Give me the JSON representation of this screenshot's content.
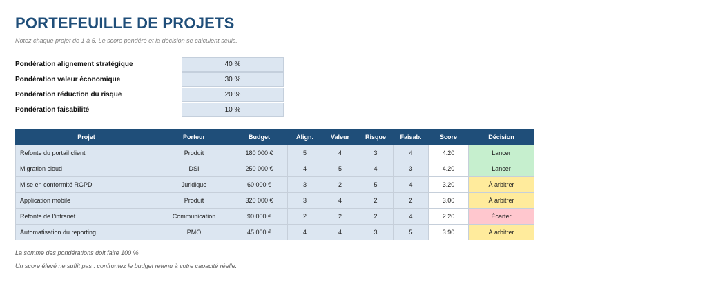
{
  "header": {
    "title": "PORTEFEUILLE DE PROJETS",
    "subtitle": "Notez chaque projet de 1 à 5. Le score pondéré et la décision se calculent seuls."
  },
  "weights": [
    {
      "label": "Pondération alignement stratégique",
      "value": "40 %"
    },
    {
      "label": "Pondération valeur économique",
      "value": "30 %"
    },
    {
      "label": "Pondération réduction du risque",
      "value": "20 %"
    },
    {
      "label": "Pondération faisabilité",
      "value": "10 %"
    }
  ],
  "table": {
    "columns": [
      "Projet",
      "Porteur",
      "Budget",
      "Align.",
      "Valeur",
      "Risque",
      "Faisab.",
      "Score",
      "Décision"
    ],
    "rows": [
      {
        "projet": "Refonte du portail client",
        "porteur": "Produit",
        "budget": "180 000 €",
        "align": "5",
        "valeur": "4",
        "risque": "3",
        "faisab": "4",
        "score": "4.20",
        "decision": "Lancer"
      },
      {
        "projet": "Migration cloud",
        "porteur": "DSI",
        "budget": "250 000 €",
        "align": "4",
        "valeur": "5",
        "risque": "4",
        "faisab": "3",
        "score": "4.20",
        "decision": "Lancer"
      },
      {
        "projet": "Mise en conformité RGPD",
        "porteur": "Juridique",
        "budget": "60 000 €",
        "align": "3",
        "valeur": "2",
        "risque": "5",
        "faisab": "4",
        "score": "3.20",
        "decision": "À arbitrer"
      },
      {
        "projet": "Application mobile",
        "porteur": "Produit",
        "budget": "320 000 €",
        "align": "3",
        "valeur": "4",
        "risque": "2",
        "faisab": "2",
        "score": "3.00",
        "decision": "À arbitrer"
      },
      {
        "projet": "Refonte de l'intranet",
        "porteur": "Communication",
        "budget": "90 000 €",
        "align": "2",
        "valeur": "2",
        "risque": "2",
        "faisab": "4",
        "score": "2.20",
        "decision": "Écarter"
      },
      {
        "projet": "Automatisation du reporting",
        "porteur": "PMO",
        "budget": "45 000 €",
        "align": "4",
        "valeur": "4",
        "risque": "3",
        "faisab": "5",
        "score": "3.90",
        "decision": "À arbitrer"
      }
    ]
  },
  "colors": {
    "header_bg": "#1f4e79",
    "input_bg": "#dce6f1",
    "decision_launch": "#c6efce",
    "decision_arbitrate": "#ffeb9c",
    "decision_drop": "#ffc7ce"
  },
  "notes": [
    "La somme des pondérations doit faire 100 %.",
    "Un score élevé ne suffit pas : confrontez le budget retenu à votre capacité réelle."
  ]
}
